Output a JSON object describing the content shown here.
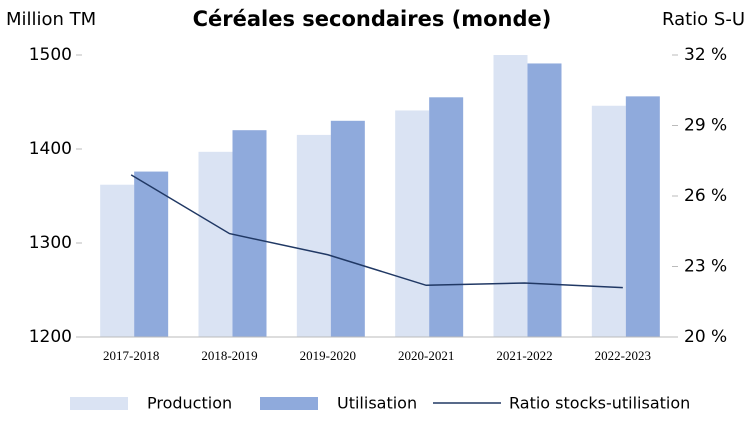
{
  "chart_data": {
    "type": "combo",
    "title": "Céréales secondaires (monde)",
    "y_label": "Million TM",
    "y2_label": "Ratio S-U",
    "categories": [
      "2017-2018",
      "2018-2019",
      "2019-2020",
      "2020-2021",
      "2021-2022",
      "2022-2023"
    ],
    "series": [
      {
        "name": "Production",
        "type": "bar",
        "color": "#dae3f3",
        "values": [
          1362,
          1397,
          1415,
          1441,
          1500,
          1446
        ]
      },
      {
        "name": "Utilisation",
        "type": "bar",
        "color": "#8faadc",
        "values": [
          1376,
          1420,
          1430,
          1455,
          1491,
          1456
        ]
      },
      {
        "name": "Ratio stocks-utilisation",
        "type": "line",
        "axis": "y2",
        "color": "#203864",
        "values": [
          26.9,
          24.4,
          23.5,
          22.2,
          22.3,
          22.1
        ]
      }
    ],
    "ylim": [
      1200,
      1500
    ],
    "yticks": [
      1200,
      1300,
      1400,
      1500
    ],
    "y2lim": [
      20,
      32
    ],
    "y2ticks": [
      {
        "value": 20,
        "label": "20 %"
      },
      {
        "value": 23,
        "label": "23 %"
      },
      {
        "value": 26,
        "label": "26 %"
      },
      {
        "value": 29,
        "label": "29 %"
      },
      {
        "value": 32,
        "label": "32 %"
      }
    ],
    "legend": "bottom"
  }
}
